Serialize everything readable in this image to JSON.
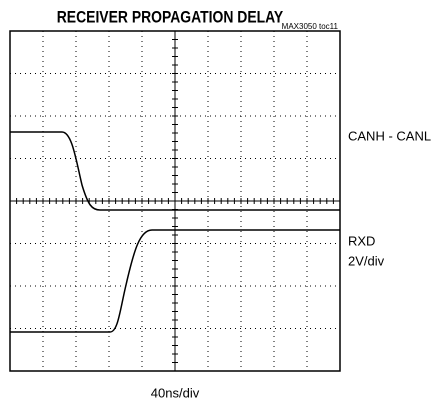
{
  "title": "RECEIVER PROPAGATION DELAY",
  "figure_id": "MAX3050 toc11",
  "traces": [
    {
      "label": "CANH - CANL"
    },
    {
      "label": "RXD",
      "scale": "2V/div"
    }
  ],
  "time_scale": "40ns/div"
}
